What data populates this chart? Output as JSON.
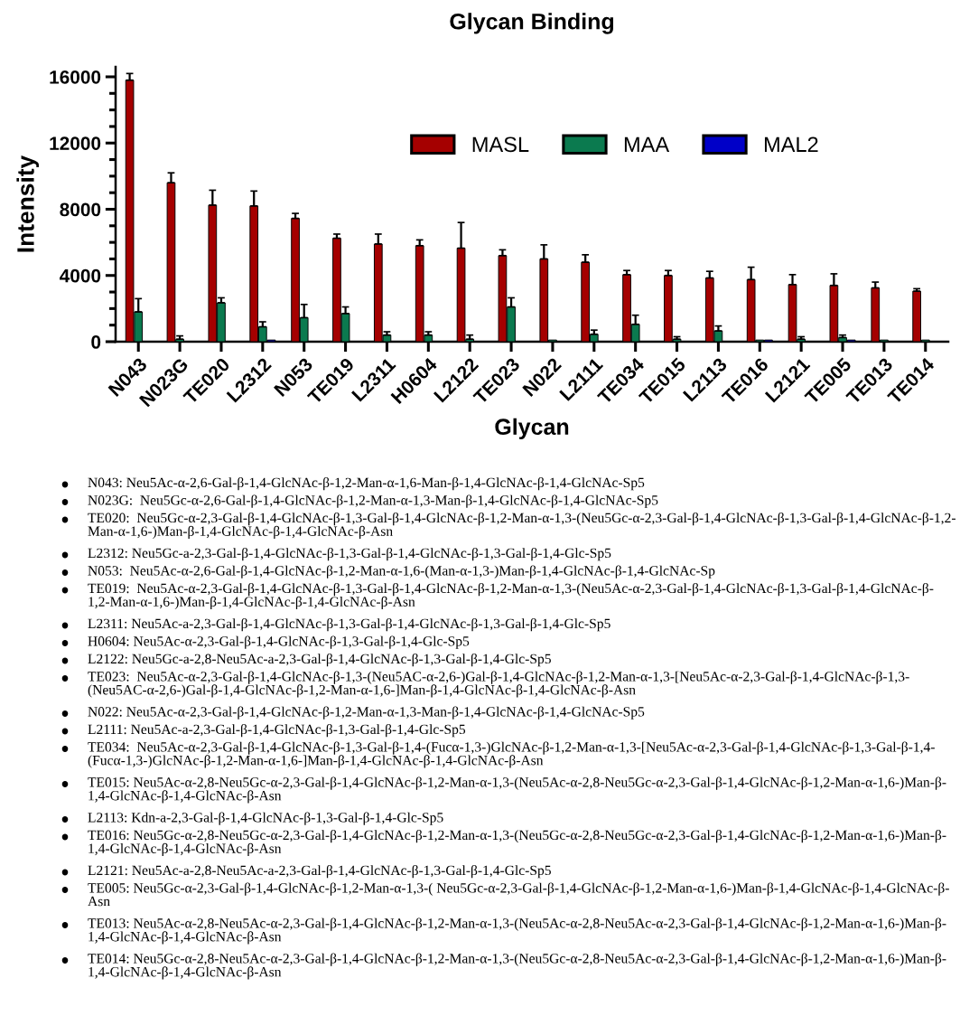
{
  "chart_data": {
    "type": "bar",
    "title": "Glycan Binding",
    "xlabel": "Glycan",
    "ylabel": "Intensity",
    "categories": [
      "N043",
      "N023G",
      "TE020",
      "L2312",
      "N053",
      "TE019",
      "L2311",
      "H0604",
      "L2122",
      "TE023",
      "N022",
      "L2111",
      "TE034",
      "TE015",
      "L2113",
      "TE016",
      "L2121",
      "TE005",
      "TE013",
      "TE014"
    ],
    "series": [
      {
        "name": "MASL",
        "color": "#a50000",
        "values": [
          15800,
          9600,
          8250,
          8200,
          7450,
          6250,
          5900,
          5800,
          5650,
          5200,
          5000,
          4800,
          4050,
          4000,
          3850,
          3750,
          3450,
          3400,
          3250,
          3050
        ],
        "errors": [
          400,
          600,
          900,
          900,
          300,
          250,
          600,
          350,
          1550,
          350,
          850,
          450,
          250,
          300,
          400,
          750,
          600,
          700,
          350,
          150
        ]
      },
      {
        "name": "MAA",
        "color": "#0b7a4f",
        "values": [
          1800,
          150,
          2350,
          900,
          1450,
          1700,
          400,
          400,
          150,
          2100,
          100,
          450,
          1050,
          150,
          650,
          100,
          150,
          250,
          100,
          100
        ],
        "errors": [
          800,
          200,
          300,
          300,
          800,
          400,
          200,
          200,
          250,
          550,
          null,
          250,
          550,
          150,
          300,
          null,
          150,
          150,
          null,
          null
        ]
      },
      {
        "name": "MAL2",
        "color": "#0000c8",
        "values": [
          null,
          null,
          null,
          100,
          null,
          null,
          null,
          null,
          null,
          null,
          null,
          null,
          null,
          null,
          null,
          100,
          null,
          100,
          null,
          null
        ],
        "errors": [
          null,
          null,
          null,
          null,
          null,
          null,
          null,
          null,
          null,
          null,
          null,
          null,
          null,
          null,
          null,
          null,
          null,
          null,
          null,
          null
        ]
      }
    ],
    "ylim": [
      0,
      16600
    ],
    "yticks": [
      0,
      {
        "value": 1000,
        "label": null
      },
      {
        "value": 2000,
        "label": null
      },
      {
        "value": 3000,
        "label": null
      },
      4000,
      {
        "value": 5000,
        "label": null
      },
      {
        "value": 6000,
        "label": null
      },
      {
        "value": 7000,
        "label": null
      },
      8000,
      {
        "value": 9000,
        "label": null
      },
      {
        "value": 10000,
        "label": null
      },
      {
        "value": 11000,
        "label": null
      },
      12000,
      {
        "value": 13000,
        "label": null
      },
      {
        "value": 14000,
        "label": null
      },
      {
        "value": 15000,
        "label": null
      },
      16000
    ],
    "grid": false,
    "legend": "top",
    "annotations": [
      "N043: Neu5Ac-α-2,6-Gal-β-1,4-GlcNAc-β-1,2-Man-α-1,6-Man-β-1,4-GlcNAc-β-1,4-GlcNAc-Sp5",
      "N023G:  Neu5Gc-α-2,6-Gal-β-1,4-GlcNAc-β-1,2-Man-α-1,3-Man-β-1,4-GlcNAc-β-1,4-GlcNAc-Sp5",
      "TE020:  Neu5Gc-α-2,3-Gal-β-1,4-GlcNAc-β-1,3-Gal-β-1,4-GlcNAc-β-1,2-Man-α-1,3-(Neu5Gc-α-2,3-Gal-β-1,4-GlcNAc-β-1,3-Gal-β-1,4-GlcNAc-β-1,2-Man-α-1,6-)Man-β-1,4-GlcNAc-β-1,4-GlcNAc-β-Asn",
      "L2312: Neu5Gc-a-2,3-Gal-β-1,4-GlcNAc-β-1,3-Gal-β-1,4-GlcNAc-β-1,3-Gal-β-1,4-Glc-Sp5",
      "N053:  Neu5Ac-α-2,6-Gal-β-1,4-GlcNAc-β-1,2-Man-α-1,6-(Man-α-1,3-)Man-β-1,4-GlcNAc-β-1,4-GlcNAc-Sp",
      "TE019:  Neu5Ac-α-2,3-Gal-β-1,4-GlcNAc-β-1,3-Gal-β-1,4-GlcNAc-β-1,2-Man-α-1,3-(Neu5Ac-α-2,3-Gal-β-1,4-GlcNAc-β-1,3-Gal-β-1,4-GlcNAc-β-1,2-Man-α-1,6-)Man-β-1,4-GlcNAc-β-1,4-GlcNAc-β-Asn",
      "L2311: Neu5Ac-a-2,3-Gal-β-1,4-GlcNAc-β-1,3-Gal-β-1,4-GlcNAc-β-1,3-Gal-β-1,4-Glc-Sp5",
      "H0604: Neu5Ac-α-2,3-Gal-β-1,4-GlcNAc-β-1,3-Gal-β-1,4-Glc-Sp5",
      "L2122: Neu5Gc-a-2,8-Neu5Ac-a-2,3-Gal-β-1,4-GlcNAc-β-1,3-Gal-β-1,4-Glc-Sp5",
      "TE023:  Neu5Ac-α-2,3-Gal-β-1,4-GlcNAc-β-1,3-(Neu5AC-α-2,6-)Gal-β-1,4-GlcNAc-β-1,2-Man-α-1,3-[Neu5Ac-α-2,3-Gal-β-1,4-GlcNAc-β-1,3-(Neu5AC-α-2,6-)Gal-β-1,4-GlcNAc-β-1,2-Man-α-1,6-]Man-β-1,4-GlcNAc-β-1,4-GlcNAc-β-Asn",
      "N022: Neu5Ac-α-2,3-Gal-β-1,4-GlcNAc-β-1,2-Man-α-1,3-Man-β-1,4-GlcNAc-β-1,4-GlcNAc-Sp5",
      "L2111: Neu5Ac-a-2,3-Gal-β-1,4-GlcNAc-β-1,3-Gal-β-1,4-Glc-Sp5",
      "TE034:  Neu5Ac-α-2,3-Gal-β-1,4-GlcNAc-β-1,3-Gal-β-1,4-(Fucα-1,3-)GlcNAc-β-1,2-Man-α-1,3-[Neu5Ac-α-2,3-Gal-β-1,4-GlcNAc-β-1,3-Gal-β-1,4-(Fucα-1,3-)GlcNAc-β-1,2-Man-α-1,6-]Man-β-1,4-GlcNAc-β-1,4-GlcNAc-β-Asn",
      "TE015: Neu5Ac-α-2,8-Neu5Gc-α-2,3-Gal-β-1,4-GlcNAc-β-1,2-Man-α-1,3-(Neu5Ac-α-2,8-Neu5Gc-α-2,3-Gal-β-1,4-GlcNAc-β-1,2-Man-α-1,6-)Man-β-1,4-GlcNAc-β-1,4-GlcNAc-β-Asn",
      "L2113: Kdn-a-2,3-Gal-β-1,4-GlcNAc-β-1,3-Gal-β-1,4-Glc-Sp5",
      "TE016: Neu5Gc-α-2,8-Neu5Gc-α-2,3-Gal-β-1,4-GlcNAc-β-1,2-Man-α-1,3-(Neu5Gc-α-2,8-Neu5Gc-α-2,3-Gal-β-1,4-GlcNAc-β-1,2-Man-α-1,6-)Man-β-1,4-GlcNAc-β-1,4-GlcNAc-β-Asn",
      "L2121: Neu5Ac-a-2,8-Neu5Ac-a-2,3-Gal-β-1,4-GlcNAc-β-1,3-Gal-β-1,4-Glc-Sp5",
      "TE005: Neu5Gc-α-2,3-Gal-β-1,4-GlcNAc-β-1,2-Man-α-1,3-( Neu5Gc-α-2,3-Gal-β-1,4-GlcNAc-β-1,2-Man-α-1,6-)Man-β-1,4-GlcNAc-β-1,4-GlcNAc-β-Asn",
      "TE013: Neu5Ac-α-2,8-Neu5Ac-α-2,3-Gal-β-1,4-GlcNAc-β-1,2-Man-α-1,3-(Neu5Ac-α-2,8-Neu5Ac-α-2,3-Gal-β-1,4-GlcNAc-β-1,2-Man-α-1,6-)Man-β-1,4-GlcNAc-β-1,4-GlcNAc-β-Asn",
      "TE014: Neu5Gc-α-2,8-Neu5Ac-α-2,3-Gal-β-1,4-GlcNAc-β-1,2-Man-α-1,3-(Neu5Gc-α-2,8-Neu5Ac-α-2,3-Gal-β-1,4-GlcNAc-β-1,2-Man-α-1,6-)Man-β-1,4-GlcNAc-β-1,4-GlcNAc-β-Asn"
    ]
  }
}
